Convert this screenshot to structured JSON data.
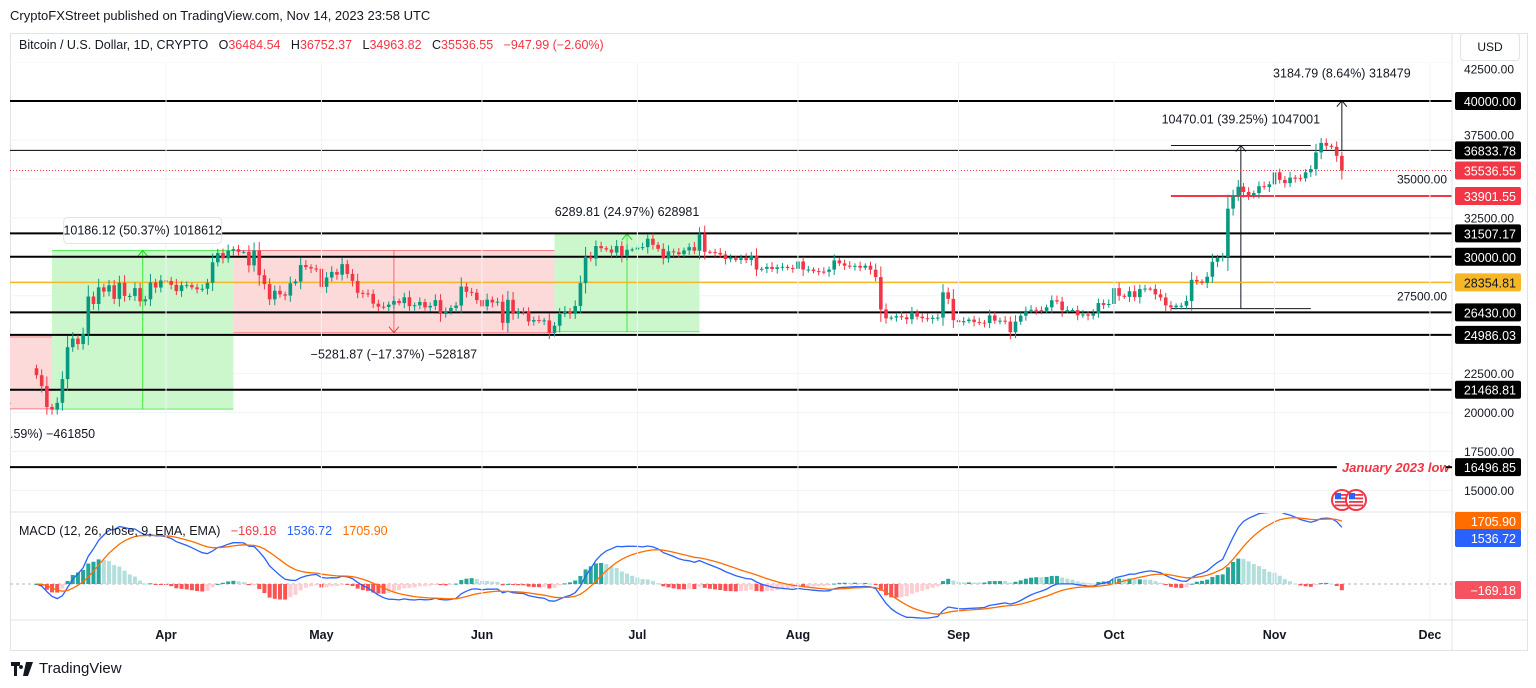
{
  "header": {
    "published": "CryptoFXStreet published on TradingView.com, Nov 14, 2023 23:58 UTC"
  },
  "legend": {
    "symbol": "Bitcoin / U.S. Dollar, 1D, CRYPTO",
    "o_label": "O",
    "open": "36484.54",
    "h_label": "H",
    "high": "36752.37",
    "l_label": "L",
    "low": "34963.82",
    "c_label": "C",
    "close": "35536.55",
    "change": "−947.99 (−2.60%)"
  },
  "currency_button": "USD",
  "macd_legend": {
    "title": "MACD (12, 26, close, 9, EMA, EMA)",
    "hist": "−169.18",
    "macd": "1536.72",
    "signal": "1705.90"
  },
  "footer": {
    "brand": "TradingView"
  },
  "colors": {
    "up": "#089981",
    "down": "#f23645",
    "macd_line": "#2962ff",
    "signal_line": "#ff6d00",
    "hist_up_strong": "#26a69a",
    "hist_up_weak": "#b2dfdb",
    "hist_down_strong": "#ff5252",
    "hist_down_weak": "#ffcdd2",
    "level": "#000000",
    "support": "#f23645",
    "orange_level": "#f7b528",
    "gain_box": "#ccf7cc",
    "loss_box": "#fcdada"
  },
  "chart_data": {
    "type": "candlestick",
    "symbol": "BTCUSD",
    "interval": "1D",
    "y_scale": "linear",
    "y_ticks": [
      "42500.00",
      "37500.00",
      "35000.00",
      "32500.00",
      "27500.00",
      "22500.00",
      "20000.00",
      "17500.00",
      "15000.00"
    ],
    "x_ticks": [
      {
        "label": "Apr",
        "date": "2023-04-01"
      },
      {
        "label": "May",
        "date": "2023-05-01"
      },
      {
        "label": "Jun",
        "date": "2023-06-01"
      },
      {
        "label": "Jul",
        "date": "2023-07-01"
      },
      {
        "label": "Aug",
        "date": "2023-08-01"
      },
      {
        "label": "Sep",
        "date": "2023-09-01"
      },
      {
        "label": "Oct",
        "date": "2023-10-01"
      },
      {
        "label": "Nov",
        "date": "2023-11-01"
      },
      {
        "label": "Dec",
        "date": "2023-12-01"
      }
    ],
    "close_by_month": {
      "2023-03": [
        null,
        null,
        null,
        null,
        null,
        null,
        22400,
        21700,
        20360,
        20190,
        20630,
        22150,
        24200,
        24750,
        24400,
        25050,
        27450,
        26970,
        28040,
        27770,
        28170,
        27300,
        28330,
        27490,
        27490,
        27990,
        27140,
        27270,
        28350,
        28030,
        28480
      ],
      "2023-04": [
        28450,
        28200,
        27800,
        28170,
        28180,
        28040,
        27920,
        27950,
        28330,
        29650,
        30240,
        29900,
        30390,
        30490,
        30320,
        30320,
        29450,
        30400,
        28820,
        28250,
        27270,
        27820,
        27590,
        27510,
        28300,
        28420,
        29470,
        29340,
        29250,
        29230
      ],
      "2023-05": [
        28070,
        28670,
        29030,
        28850,
        29530,
        28900,
        28450,
        27690,
        27650,
        27620,
        26990,
        26800,
        26780,
        26930,
        27170,
        27030,
        27400,
        26830,
        26890,
        27100,
        26750,
        26850,
        27220,
        26330,
        26470,
        26720,
        26870,
        28090,
        27750,
        27700,
        27220
      ],
      "2023-06": [
        26820,
        27250,
        27070,
        27120,
        25760,
        27240,
        26340,
        26500,
        26480,
        25850,
        25940,
        25900,
        25920,
        25120,
        25580,
        26330,
        26510,
        26340,
        26840,
        28310,
        30010,
        29890,
        30690,
        30550,
        30470,
        30270,
        30690,
        30080,
        30450,
        30470
      ],
      "2023-07": [
        30590,
        30620,
        31160,
        30770,
        30510,
        29900,
        30350,
        30290,
        30170,
        30410,
        30620,
        30390,
        31470,
        30320,
        30300,
        30250,
        30150,
        29860,
        29910,
        29800,
        29910,
        29790,
        30080,
        29180,
        29230,
        29350,
        29220,
        29320,
        29360,
        29280,
        29230
      ],
      "2023-08": [
        29700,
        29180,
        29180,
        29080,
        29050,
        29040,
        29180,
        29770,
        29580,
        29430,
        29400,
        29420,
        29300,
        29430,
        29170,
        28700,
        26620,
        26050,
        26100,
        26190,
        26120,
        25990,
        26430,
        26160,
        26060,
        26010,
        26090,
        26100,
        27720,
        27300,
        25930
      ],
      "2023-09": [
        25800,
        25870,
        25970,
        25810,
        25780,
        25750,
        26240,
        25900,
        25900,
        25840,
        25160,
        25840,
        26220,
        26530,
        26600,
        26570,
        26530,
        26760,
        27210,
        27130,
        26570,
        26580,
        26580,
        26250,
        26300,
        26220,
        26370,
        27030,
        26910,
        26970
      ],
      "2023-10": [
        27990,
        27500,
        27430,
        27790,
        27410,
        27930,
        27960,
        27940,
        27590,
        27390,
        26880,
        26760,
        26860,
        26860,
        27160,
        28520,
        28420,
        28330,
        28720,
        29680,
        29920,
        29990,
        33090,
        33900,
        34500,
        34160,
        33910,
        34090,
        34530,
        34480,
        34650
      ],
      "2023-11": [
        35420,
        34940,
        34730,
        35080,
        35050,
        35040,
        35420,
        35630,
        36700,
        37310,
        37130,
        37060,
        36480,
        35536.55
      ]
    },
    "last_bar": {
      "date": "2023-11-14",
      "open": 36484.54,
      "high": 36752.37,
      "low": 34963.82,
      "close": 35536.55
    },
    "levels": [
      {
        "price": 40000,
        "label": "40000.00",
        "style": "black"
      },
      {
        "price": 36833.78,
        "label": "36833.78",
        "style": "black-thin"
      },
      {
        "price": 35536.55,
        "label": "35536.55",
        "style": "current"
      },
      {
        "price": 33901.55,
        "label": "33901.55",
        "style": "red",
        "from": "2023-10-12"
      },
      {
        "price": 31507.17,
        "label": "31507.17",
        "style": "black"
      },
      {
        "price": 30000,
        "label": "30000.00",
        "style": "black"
      },
      {
        "price": 28354.81,
        "label": "28354.81",
        "style": "orange"
      },
      {
        "price": 26430,
        "label": "26430.00",
        "style": "black"
      },
      {
        "price": 24986.03,
        "label": "24986.03",
        "style": "black"
      },
      {
        "price": 21468.81,
        "label": "21468.81",
        "style": "black"
      },
      {
        "price": 16496.85,
        "label": "16496.85",
        "style": "black",
        "to": "2023-11-14",
        "note": "January 2023 low"
      }
    ],
    "measures": [
      {
        "kind": "loss",
        "label": ".59%) −461850",
        "from_date": "2023-02-20",
        "to_date": "2023-03-10",
        "from_price": 24860,
        "to_price": 20241
      },
      {
        "kind": "gain",
        "label": "10186.12 (50.37%) 1018612",
        "from_date": "2023-03-10",
        "to_date": "2023-04-14",
        "from_price": 20222,
        "to_price": 30408,
        "boxed_label": true
      },
      {
        "kind": "loss",
        "label": "−5281.87 (−17.37%) −528187",
        "from_date": "2023-04-14",
        "to_date": "2023-06-15",
        "from_price": 30408,
        "to_price": 25126
      },
      {
        "kind": "gain",
        "label": "6289.81 (24.97%) 628981",
        "from_date": "2023-06-15",
        "to_date": "2023-07-13",
        "from_price": 25188,
        "to_price": 31478
      },
      {
        "kind": "range",
        "label": "10470.01 (39.25%) 1047001",
        "from_date": "2023-10-12",
        "to_date": "2023-11-08",
        "from_price": 26675,
        "to_price": 37145
      },
      {
        "kind": "range",
        "label": "3184.79 (8.64%) 318479",
        "from_date": "2023-11-14",
        "to_date": "2023-11-14",
        "from_price": 36833.78,
        "to_price": 40018.57
      }
    ],
    "annotation": "January 2023 low",
    "macd": {
      "fast": 12,
      "slow": 26,
      "signal": 9,
      "hist": -169.18,
      "macd": 1536.72,
      "signal_value": 1705.9,
      "labels": {
        "hist": "−169.18",
        "macd": "1536.72",
        "signal": "1705.90",
        "zero": "0.00"
      }
    },
    "events": [
      "us-flag-icon",
      "us-flag-icon"
    ]
  }
}
